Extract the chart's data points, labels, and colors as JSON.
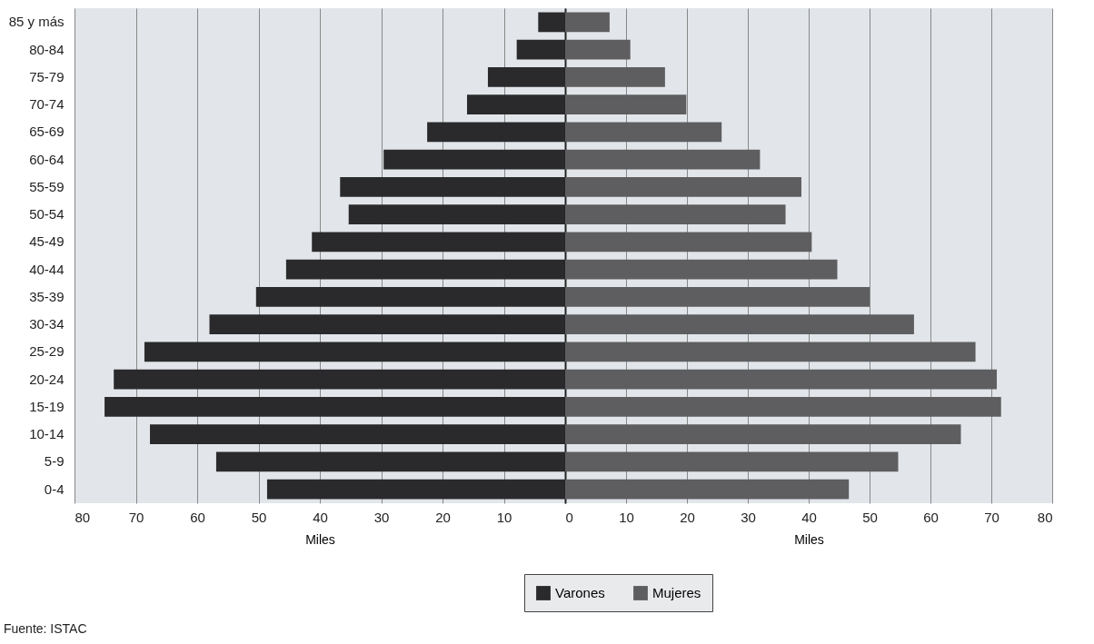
{
  "chart_data": [
    {
      "type": "bar",
      "orientation": "horizontal",
      "categories": [
        "85 y más",
        "80-84",
        "75-79",
        "70-74",
        "65-69",
        "60-64",
        "55-59",
        "50-54",
        "45-49",
        "40-44",
        "35-39",
        "30-34",
        "25-29",
        "20-24",
        "15-19",
        "10-14",
        "5-9",
        "0-4"
      ],
      "series": [
        {
          "name": "Varones",
          "color": "#2a2a2c",
          "values": [
            4.4,
            7.9,
            12.6,
            16,
            22.5,
            29.6,
            36.7,
            35.3,
            41.3,
            45.5,
            50.4,
            58,
            68.6,
            73.6,
            75.1,
            67.7,
            56.9,
            48.6
          ]
        }
      ],
      "xlim": [
        80,
        0
      ],
      "xticks": [
        80,
        70,
        60,
        50,
        40,
        30,
        20,
        10
      ],
      "xlabel": "Miles",
      "grid": "x",
      "legend": "bottom",
      "annotations": [
        "Fuente: ISTAC"
      ]
    },
    {
      "type": "bar",
      "orientation": "horizontal",
      "categories": [
        null,
        null,
        null,
        null,
        null,
        null,
        null,
        null,
        null,
        null,
        null,
        null,
        null,
        null,
        null,
        null,
        null,
        null
      ],
      "series": [
        {
          "name": "Mujeres",
          "color": "#5e5e60",
          "values": [
            7.3,
            10.7,
            16.4,
            19.9,
            25.7,
            32,
            38.8,
            36.2,
            40.5,
            44.7,
            50,
            57.3,
            67.4,
            70.9,
            71.6,
            65,
            54.7,
            46.6
          ]
        }
      ],
      "xlim": [
        0,
        80
      ],
      "xticks": [
        0,
        10,
        20,
        30,
        40,
        50,
        60,
        70,
        80
      ],
      "xlabel": "Miles",
      "grid": "x",
      "legend": "bottom",
      "tick_labels": "x"
    }
  ]
}
